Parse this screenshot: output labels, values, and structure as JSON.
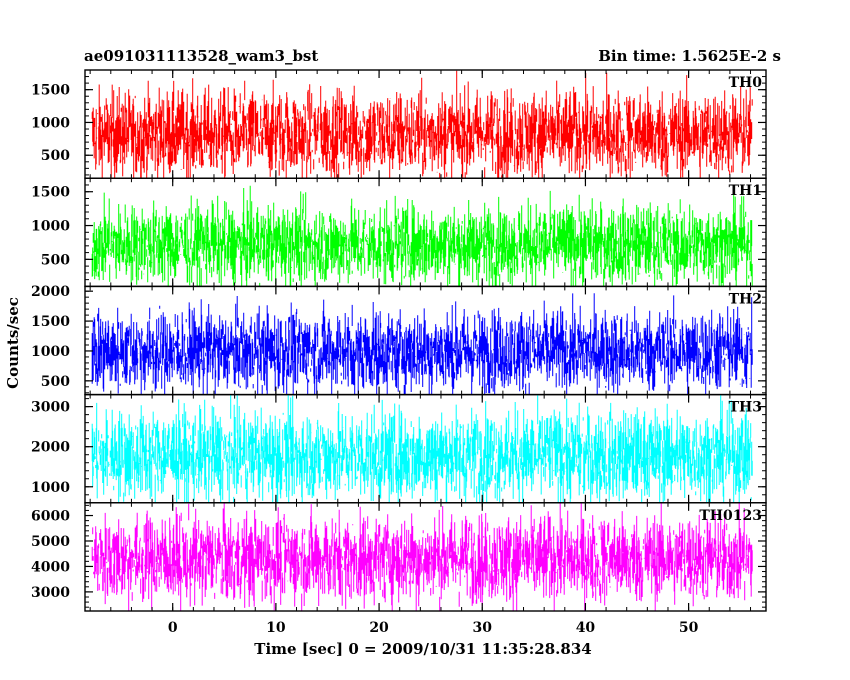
{
  "chart_data": {
    "type": "line",
    "title": "ae091031113528_wam3_bst",
    "subtitle": "Bin time: 1.5625E-2 s",
    "xlabel": "Time [sec] 0 = 2009/10/31 11:35:28.834",
    "ylabel": "Counts/sec",
    "xlim": [
      -8.5,
      57.5
    ],
    "x_ticks": [
      0,
      10,
      20,
      30,
      40,
      50
    ],
    "x_tick_labels": [
      "0",
      "10",
      "20",
      "30",
      "40",
      "50"
    ],
    "data_x_range": [
      -7.8,
      56.2
    ],
    "bin_time": 0.015625,
    "series": [
      {
        "name": "TH0",
        "color": "#ff0000",
        "ylim": [
          150,
          1800
        ],
        "level": 820,
        "spread": 330,
        "y_ticks": [
          500,
          1000,
          1500
        ],
        "y_tick_labels": [
          "500",
          "1000",
          "1500"
        ]
      },
      {
        "name": "TH1",
        "color": "#00ff00",
        "ylim": [
          100,
          1700
        ],
        "level": 720,
        "spread": 290,
        "y_ticks": [
          500,
          1000,
          1500
        ],
        "y_tick_labels": [
          "500",
          "1000",
          "1500"
        ]
      },
      {
        "name": "TH2",
        "color": "#0000ff",
        "ylim": [
          270,
          2080
        ],
        "level": 1000,
        "spread": 340,
        "y_ticks": [
          500,
          1000,
          1500,
          2000
        ],
        "y_tick_labels": [
          "500",
          "1000",
          "1500",
          "2000"
        ]
      },
      {
        "name": "TH3",
        "color": "#00ffff",
        "ylim": [
          600,
          3300
        ],
        "level": 1780,
        "spread": 560,
        "y_ticks": [
          1000,
          2000,
          3000
        ],
        "y_tick_labels": [
          "1000",
          "2000",
          "3000"
        ]
      },
      {
        "name": "TH0123",
        "color": "#ff00ff",
        "ylim": [
          2250,
          6500
        ],
        "level": 4300,
        "spread": 850,
        "y_ticks": [
          3000,
          4000,
          5000,
          6000
        ],
        "y_tick_labels": [
          "3000",
          "4000",
          "5000",
          "6000"
        ]
      }
    ]
  }
}
